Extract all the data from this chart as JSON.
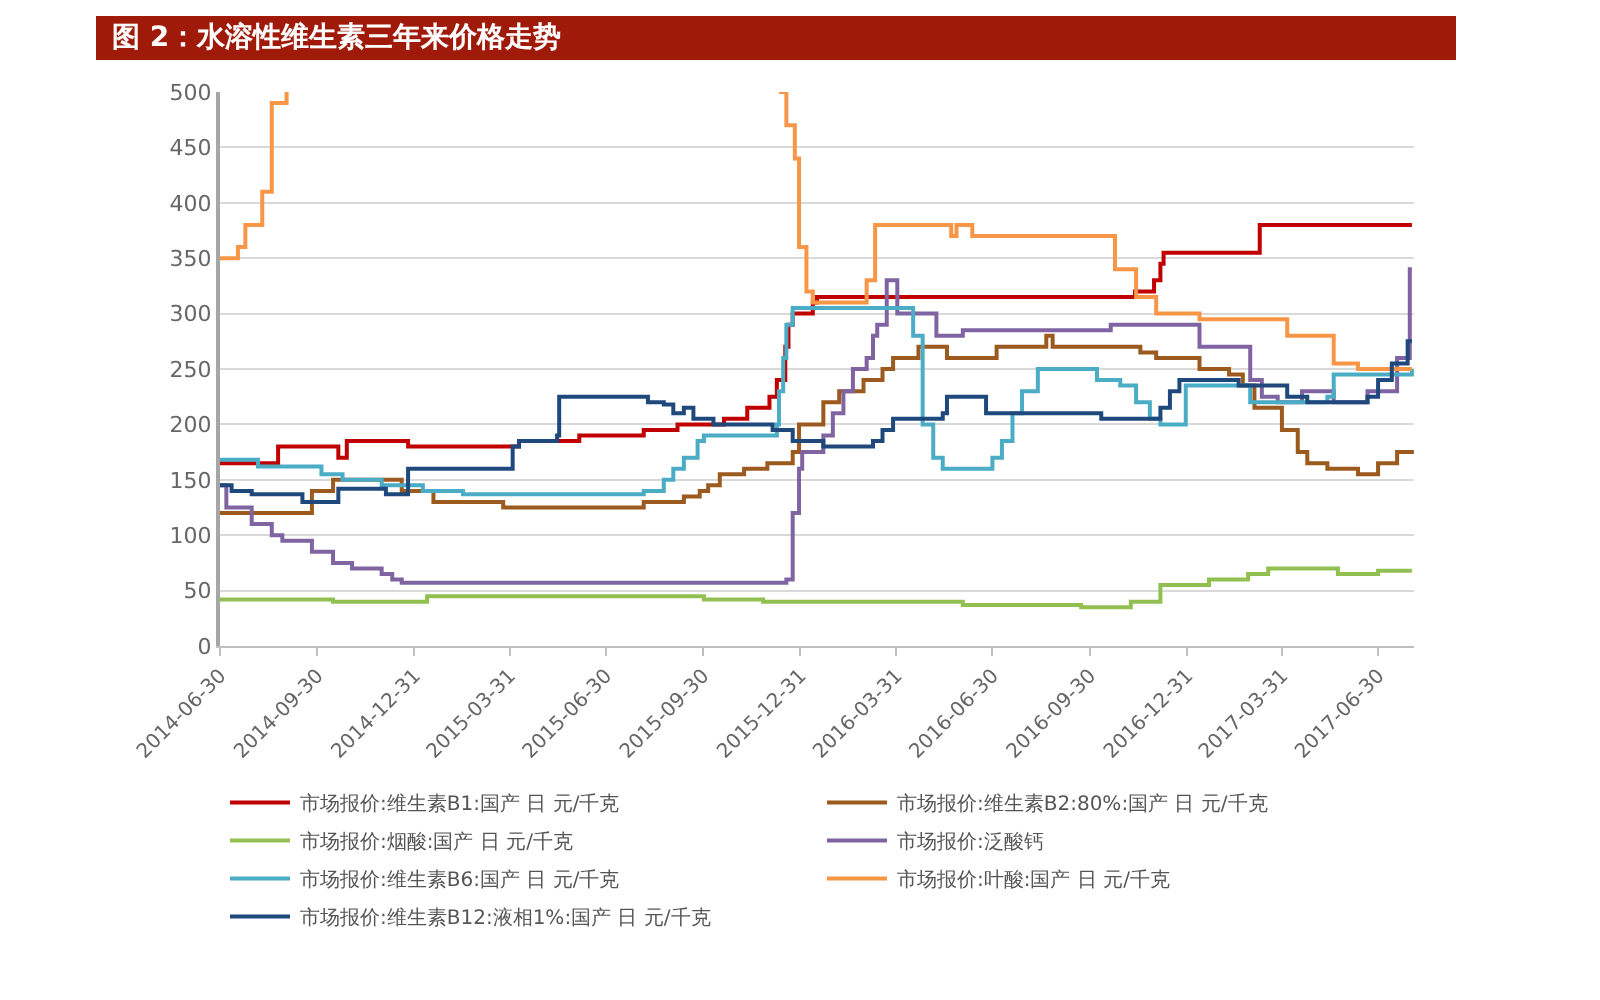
{
  "chart_data": {
    "type": "step",
    "title": "图 2：水溶性维生素三年来价格走势",
    "xlim": [
      "2014-06-30",
      "2017-08-03"
    ],
    "ylim": [
      0,
      500
    ],
    "yticks": [
      0,
      50,
      100,
      150,
      200,
      250,
      300,
      350,
      400,
      450,
      500
    ],
    "xticks": [
      "2014-06-30",
      "2014-09-30",
      "2014-12-31",
      "2015-03-31",
      "2015-06-30",
      "2015-09-30",
      "2015-12-31",
      "2016-03-31",
      "2016-06-30",
      "2016-09-30",
      "2016-12-31",
      "2017-03-31",
      "2017-06-30"
    ],
    "grid": "y",
    "legend": "bottom",
    "series": [
      {
        "name": "市场报价:维生素B1:国产 日 元/千克",
        "color": "#c00000",
        "x": [
          "2014-06-30",
          "2014-08-24",
          "2014-10-20",
          "2014-10-28",
          "2014-12-25",
          "2015-04-09",
          "2015-06-05",
          "2015-08-05",
          "2015-09-06",
          "2015-10-20",
          "2015-11-11",
          "2015-12-02",
          "2015-12-09",
          "2015-12-17",
          "2015-12-20",
          "2015-12-24",
          "2016-01-12",
          "2016-01-16",
          "2016-11-12",
          "2016-11-30",
          "2016-12-06",
          "2016-12-09",
          "2017-03-10",
          "2017-08-01"
        ],
        "values": [
          165,
          180,
          170,
          185,
          180,
          185,
          190,
          195,
          200,
          205,
          215,
          225,
          240,
          270,
          290,
          300,
          310,
          315,
          320,
          330,
          345,
          355,
          380,
          380
        ]
      },
      {
        "name": "市场报价:维生素B2:80%:国产 日 元/千克",
        "color": "#9c5a1e",
        "x": [
          "2014-06-30",
          "2014-09-25",
          "2014-10-15",
          "2014-12-19",
          "2015-01-18",
          "2015-03-25",
          "2015-08-05",
          "2015-09-12",
          "2015-09-27",
          "2015-10-05",
          "2015-10-16",
          "2015-11-08",
          "2015-11-30",
          "2015-12-24",
          "2015-12-30",
          "2016-01-22",
          "2016-02-06",
          "2016-02-29",
          "2016-03-18",
          "2016-03-28",
          "2016-04-21",
          "2016-05-18",
          "2016-07-04",
          "2016-08-12",
          "2016-08-20",
          "2016-08-26",
          "2016-11-17",
          "2016-12-02",
          "2017-01-12",
          "2017-02-09",
          "2017-02-22",
          "2017-03-05",
          "2017-03-31",
          "2017-04-15",
          "2017-04-24",
          "2017-05-13",
          "2017-06-11",
          "2017-06-30",
          "2017-07-18",
          "2017-08-01"
        ],
        "values": [
          120,
          140,
          150,
          140,
          130,
          125,
          130,
          135,
          140,
          145,
          155,
          160,
          165,
          175,
          200,
          220,
          230,
          240,
          250,
          260,
          270,
          260,
          270,
          270,
          280,
          270,
          265,
          260,
          250,
          245,
          235,
          215,
          195,
          175,
          165,
          160,
          155,
          165,
          175,
          177
        ]
      },
      {
        "name": "市场报价:烟酸:国产 日 元/千克",
        "color": "#92c050",
        "x": [
          "2014-06-30",
          "2014-10-15",
          "2015-01-12",
          "2015-10-01",
          "2015-11-26",
          "2016-06-02",
          "2016-09-22",
          "2016-11-08",
          "2016-12-06",
          "2017-01-21",
          "2017-02-27",
          "2017-03-18",
          "2017-05-23",
          "2017-06-30",
          "2017-08-01"
        ],
        "values": [
          42,
          40,
          45,
          42,
          40,
          37,
          35,
          40,
          55,
          60,
          65,
          70,
          65,
          68,
          68
        ]
      },
      {
        "name": "市场报价:泛酸钙",
        "color": "#8064a2",
        "x": [
          "2014-06-30",
          "2014-07-06",
          "2014-07-30",
          "2014-08-18",
          "2014-08-28",
          "2014-09-25",
          "2014-10-15",
          "2014-11-02",
          "2014-11-30",
          "2014-12-10",
          "2014-12-19",
          "2015-12-18",
          "2015-12-24",
          "2015-12-30",
          "2016-01-02",
          "2016-01-22",
          "2016-01-31",
          "2016-02-10",
          "2016-02-19",
          "2016-03-03",
          "2016-03-09",
          "2016-03-13",
          "2016-03-22",
          "2016-04-01",
          "2016-05-08",
          "2016-06-02",
          "2016-10-20",
          "2017-01-12",
          "2017-03-01",
          "2017-03-12",
          "2017-03-27",
          "2017-04-19",
          "2017-05-19",
          "2017-06-20",
          "2017-07-18",
          "2017-07-30",
          "2017-08-01"
        ],
        "values": [
          145,
          125,
          110,
          100,
          95,
          85,
          75,
          70,
          65,
          60,
          57,
          60,
          120,
          160,
          175,
          190,
          210,
          230,
          250,
          260,
          280,
          290,
          330,
          300,
          280,
          285,
          290,
          270,
          240,
          225,
          220,
          230,
          220,
          230,
          260,
          340,
          340
        ]
      },
      {
        "name": "市场报价:维生素B6:国产 日 元/千克",
        "color": "#4bacc6",
        "x": [
          "2014-06-30",
          "2014-08-05",
          "2014-10-04",
          "2014-10-24",
          "2014-11-30",
          "2015-01-08",
          "2015-02-15",
          "2015-08-05",
          "2015-08-24",
          "2015-09-02",
          "2015-09-12",
          "2015-09-25",
          "2015-10-01",
          "2015-12-09",
          "2015-12-11",
          "2015-12-15",
          "2015-12-18",
          "2015-12-24",
          "2016-04-16",
          "2016-04-25",
          "2016-05-05",
          "2016-05-14",
          "2016-06-30",
          "2016-07-09",
          "2016-07-19",
          "2016-07-28",
          "2016-08-12",
          "2016-10-07",
          "2016-10-29",
          "2016-11-13",
          "2016-11-26",
          "2016-12-06",
          "2016-12-30",
          "2017-03-01",
          "2017-05-13",
          "2017-05-19",
          "2017-08-01"
        ],
        "values": [
          168,
          162,
          155,
          150,
          145,
          140,
          137,
          140,
          150,
          160,
          170,
          185,
          190,
          200,
          230,
          260,
          290,
          305,
          280,
          200,
          170,
          160,
          170,
          185,
          210,
          230,
          250,
          240,
          235,
          220,
          205,
          200,
          235,
          220,
          225,
          245,
          250
        ]
      },
      {
        "name": "市场报价:叶酸:国产 日 元/千克",
        "color": "#f79646",
        "x": [
          "2014-06-30",
          "2014-07-17",
          "2014-07-24",
          "2014-08-09",
          "2014-08-18",
          "2014-09-01",
          "2015-06-01",
          "2015-12-11",
          "2015-12-18",
          "2015-12-26",
          "2015-12-30",
          "2016-01-06",
          "2016-01-12",
          "2016-03-03",
          "2016-03-11",
          "2016-05-22",
          "2016-05-27",
          "2016-06-11",
          "2016-10-24",
          "2016-11-13",
          "2016-12-02",
          "2017-01-12",
          "2017-04-05",
          "2017-05-19",
          "2017-06-11",
          "2017-08-01"
        ],
        "values": [
          350,
          360,
          380,
          410,
          490,
          500,
          null,
          500,
          470,
          440,
          360,
          320,
          310,
          330,
          380,
          370,
          380,
          370,
          340,
          315,
          300,
          295,
          280,
          255,
          250,
          250
        ]
      },
      {
        "name": "市场报价:维生素B12:液相1%:国产 日 元/千克",
        "color": "#1f497d",
        "x": [
          "2014-06-30",
          "2014-07-11",
          "2014-07-30",
          "2014-09-16",
          "2014-10-20",
          "2014-12-04",
          "2014-12-25",
          "2015-04-03",
          "2015-04-09",
          "2015-05-15",
          "2015-05-17",
          "2015-08-09",
          "2015-08-24",
          "2015-09-02",
          "2015-09-12",
          "2015-09-21",
          "2015-10-10",
          "2015-12-05",
          "2015-12-24",
          "2016-01-22",
          "2016-03-09",
          "2016-03-18",
          "2016-03-28",
          "2016-05-14",
          "2016-05-18",
          "2016-06-24",
          "2016-10-11",
          "2016-12-06",
          "2016-12-15",
          "2016-12-24",
          "2017-02-18",
          "2017-04-05",
          "2017-04-24",
          "2017-06-20",
          "2017-06-30",
          "2017-07-13",
          "2017-07-28",
          "2017-08-01"
        ],
        "values": [
          145,
          140,
          137,
          130,
          142,
          137,
          160,
          180,
          185,
          190,
          225,
          220,
          218,
          210,
          215,
          205,
          200,
          195,
          185,
          180,
          185,
          195,
          205,
          210,
          225,
          210,
          205,
          215,
          230,
          240,
          235,
          225,
          220,
          225,
          240,
          255,
          275,
          275
        ]
      }
    ]
  }
}
